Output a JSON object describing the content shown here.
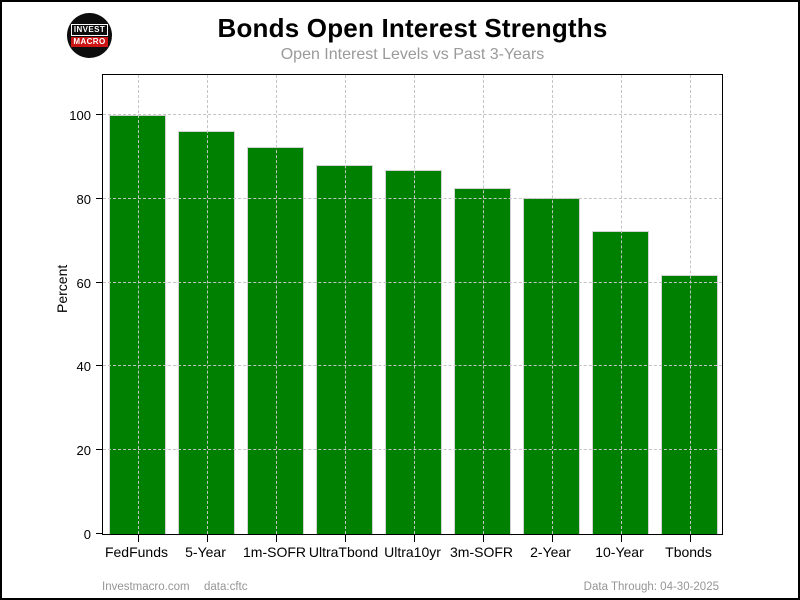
{
  "header": {
    "title": "Bonds Open Interest Strengths",
    "subtitle": "Open Interest Levels vs Past 3-Years",
    "logo_line1": "INVEST",
    "logo_line2": "MACRO"
  },
  "footer": {
    "site": "Investmacro.com",
    "source": "data:cftc",
    "data_through": "Data Through: 04-30-2025"
  },
  "colors": {
    "bar": "#008000",
    "bar_edge": "#d3d3d3",
    "grid": "#c4c4c4",
    "subtitle": "#9a9a9a",
    "footer_text": "#969696",
    "logo_badge_red": "#cc1414"
  },
  "chart_data": {
    "type": "bar",
    "title": "Bonds Open Interest Strengths",
    "subtitle": "Open Interest Levels vs Past 3-Years",
    "categories": [
      "FedFunds",
      "5-Year",
      "1m-SOFR",
      "UltraTbond",
      "Ultra10yr",
      "3m-SOFR",
      "2-Year",
      "10-Year",
      "Tbonds"
    ],
    "values": [
      100,
      96.1,
      92.3,
      88.1,
      86.9,
      82.5,
      80.2,
      72.4,
      61.8
    ],
    "xlabel": "",
    "ylabel": "Percent",
    "ylim": [
      0,
      110
    ],
    "yticks": [
      0,
      20,
      40,
      60,
      80,
      100
    ],
    "grid": "dashed, horizontal and vertical, drawn over bars",
    "legend": "none"
  }
}
